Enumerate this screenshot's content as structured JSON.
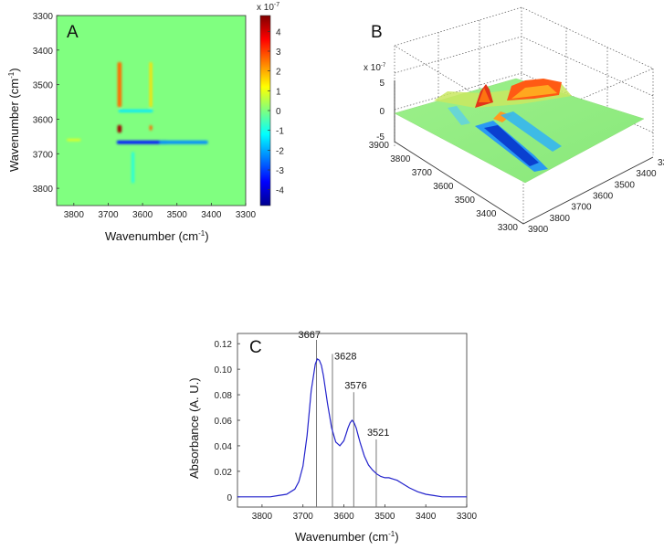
{
  "chart_data": [
    {
      "panel": "A",
      "type": "heatmap",
      "xlabel": "Wavenumber (cm",
      "ylabel": "Wavenumber (cm",
      "label_superscript": "-1",
      "label_suffix": ")",
      "xlim": [
        3850,
        3300
      ],
      "ylim": [
        3300,
        3850
      ],
      "xticks": [
        3800,
        3700,
        3600,
        3500,
        3400,
        3300
      ],
      "yticks": [
        3300,
        3400,
        3500,
        3600,
        3700,
        3800
      ],
      "colorbar": {
        "ticks": [
          4,
          3,
          2,
          1,
          0,
          -1,
          -2,
          -3,
          -4
        ],
        "range": [
          -4.8,
          4.8
        ],
        "scale_prefix": "x 10",
        "scale_exp": "-7"
      },
      "features": [
        {
          "x": 3667,
          "y": 3628,
          "value": 4.5,
          "sx": 12,
          "sy": 22
        },
        {
          "x": 3667,
          "y": 3500,
          "value": 2.6,
          "sx": 12,
          "sy": 130
        },
        {
          "x": 3576,
          "y": 3500,
          "value": 1.5,
          "sx": 8,
          "sy": 130
        },
        {
          "x": 3576,
          "y": 3625,
          "value": 2.6,
          "sx": 8,
          "sy": 15
        },
        {
          "x": 3600,
          "y": 3667,
          "value": -3.4,
          "sx": 150,
          "sy": 10
        },
        {
          "x": 3480,
          "y": 3667,
          "value": -2.3,
          "sx": 140,
          "sy": 10
        },
        {
          "x": 3620,
          "y": 3576,
          "value": -1.4,
          "sx": 100,
          "sy": 8
        },
        {
          "x": 3628,
          "y": 3740,
          "value": -0.9,
          "sx": 8,
          "sy": 90
        },
        {
          "x": 3800,
          "y": 3660,
          "value": 0.9,
          "sx": 40,
          "sy": 7
        }
      ]
    },
    {
      "panel": "B",
      "type": "surface",
      "zlabel_prefix": "x 10",
      "zlabel_exp": "-7",
      "zticks": [
        5,
        0,
        -5
      ],
      "axis1_ticks": [
        3900,
        3800,
        3700,
        3600,
        3500,
        3400,
        3300
      ],
      "axis2_ticks": [
        3900,
        3800,
        3700,
        3600,
        3500,
        3400,
        3300
      ]
    },
    {
      "panel": "C",
      "type": "line",
      "xlabel": "Wavenumber (cm",
      "ylabel": "Absorbance (A. U.)",
      "label_superscript": "-1",
      "label_suffix": ")",
      "xlim": [
        3860,
        3300
      ],
      "ylim": [
        -0.008,
        0.128
      ],
      "xticks": [
        3800,
        3700,
        3600,
        3500,
        3400,
        3300
      ],
      "yticks": [
        0,
        0.02,
        0.04,
        0.06,
        0.08,
        0.1,
        0.12
      ],
      "ytick_labels": [
        "0",
        "0.02",
        "0.04",
        "0.06",
        "0.08",
        "0.10",
        "0.12"
      ],
      "series": [
        {
          "name": "absorbance",
          "color": "#2222cc",
          "x": [
            3860,
            3840,
            3820,
            3800,
            3780,
            3760,
            3740,
            3720,
            3710,
            3700,
            3690,
            3680,
            3670,
            3665,
            3660,
            3655,
            3650,
            3640,
            3630,
            3620,
            3610,
            3600,
            3595,
            3590,
            3585,
            3580,
            3575,
            3570,
            3565,
            3560,
            3550,
            3540,
            3530,
            3520,
            3510,
            3500,
            3490,
            3480,
            3470,
            3460,
            3450,
            3440,
            3420,
            3400,
            3380,
            3360,
            3340,
            3320,
            3300
          ],
          "values": [
            0,
            0,
            0,
            0,
            0,
            0.001,
            0.002,
            0.006,
            0.012,
            0.024,
            0.048,
            0.083,
            0.104,
            0.108,
            0.107,
            0.103,
            0.095,
            0.073,
            0.054,
            0.043,
            0.04,
            0.044,
            0.049,
            0.054,
            0.058,
            0.06,
            0.058,
            0.054,
            0.048,
            0.042,
            0.032,
            0.025,
            0.021,
            0.018,
            0.016,
            0.015,
            0.015,
            0.014,
            0.013,
            0.011,
            0.009,
            0.007,
            0.004,
            0.002,
            0.001,
            0,
            0,
            0,
            0
          ]
        }
      ],
      "peaks": [
        {
          "x": 3667,
          "label": "3667",
          "top": 0.123
        },
        {
          "x": 3628,
          "label": "3628",
          "top": 0.112
        },
        {
          "x": 3576,
          "label": "3576",
          "top": 0.082
        },
        {
          "x": 3521,
          "label": "3521",
          "top": 0.045
        }
      ]
    }
  ]
}
